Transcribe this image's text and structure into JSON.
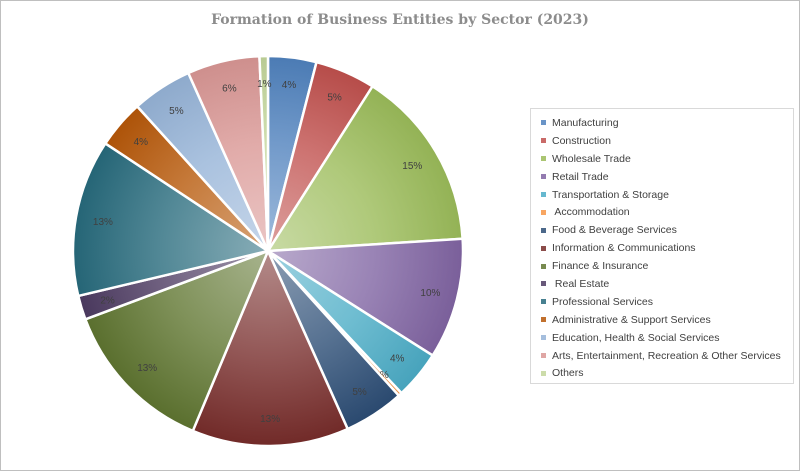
{
  "chart_data": {
    "type": "pie",
    "title": "Formation of Business Entities by Sector (2023)",
    "legend_position": "right",
    "series": [
      {
        "name": "Manufacturing",
        "value": 4,
        "label": "4%",
        "color": "#4f81bd"
      },
      {
        "name": "Construction",
        "value": 5,
        "label": "5%",
        "color": "#c0504d"
      },
      {
        "name": "Wholesale Trade",
        "value": 15,
        "label": "15%",
        "color": "#9bbb59"
      },
      {
        "name": "Retail Trade",
        "value": 10,
        "label": "10%",
        "color": "#8064a2"
      },
      {
        "name": "Transportation & Storage",
        "value": 4,
        "label": "4%",
        "color": "#4bacc6"
      },
      {
        "name": " Accommodation",
        "value": 0.3,
        "label": "0%",
        "color": "#f79646"
      },
      {
        "name": "Food & Beverage Services",
        "value": 5,
        "label": "5%",
        "color": "#2c4d75"
      },
      {
        "name": "Information & Communications",
        "value": 13,
        "label": "13%",
        "color": "#772c2a"
      },
      {
        "name": "Finance & Insurance",
        "value": 13,
        "label": "13%",
        "color": "#5f7530"
      },
      {
        "name": " Real Estate",
        "value": 2,
        "label": "2%",
        "color": "#4d3b62"
      },
      {
        "name": "Professional Services",
        "value": 13,
        "label": "13%",
        "color": "#276a7c"
      },
      {
        "name": "Administrative & Support Services",
        "value": 4,
        "label": "4%",
        "color": "#b65708"
      },
      {
        "name": "Education, Health & Social Services",
        "value": 5,
        "label": "5%",
        "color": "#95b3d7"
      },
      {
        "name": "Arts, Entertainment, Recreation & Other Services",
        "value": 6,
        "label": "6%",
        "color": "#d99694"
      },
      {
        "name": "Others",
        "value": 0.7,
        "label": "1%",
        "color": "#c3d69b"
      }
    ]
  }
}
